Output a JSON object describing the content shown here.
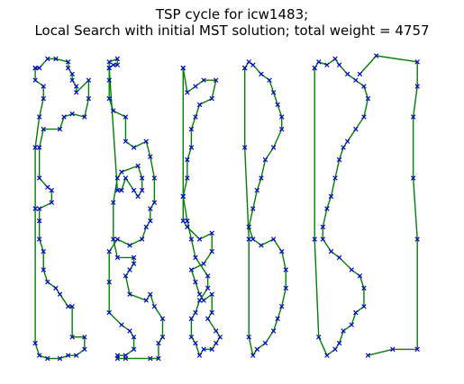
{
  "figure": {
    "title_line1": "TSP cycle for icw1483;",
    "title_line2": "Local Search with initial MST solution; total weight = 4757"
  },
  "chart_data": {
    "type": "scatter",
    "title": "TSP cycle for icw1483; Local Search with initial MST solution; total weight = 4757",
    "xlabel": "",
    "ylabel": "",
    "axes_visible": false,
    "grid": false,
    "legend": "none",
    "xlim": [
      0,
      100
    ],
    "ylim": [
      0,
      100
    ],
    "colors": {
      "edge": "#008000",
      "node": "#0000cc"
    },
    "series": [
      {
        "role": "cycle-edges",
        "x": [
          2,
          3,
          5,
          7,
          10,
          10,
          11,
          11,
          12,
          12,
          15,
          15,
          14,
          11,
          9,
          8,
          4,
          3,
          3,
          5,
          6,
          6,
          3,
          3,
          3,
          4,
          4,
          5,
          7,
          8,
          10,
          11,
          11,
          14,
          14,
          12,
          10,
          8,
          5,
          3,
          2,
          2,
          2,
          3,
          4,
          4,
          2,
          2
        ],
        "y": [
          96,
          96,
          99,
          99,
          98,
          96,
          94,
          92,
          90,
          88,
          92,
          86,
          80,
          81,
          80,
          76,
          76,
          70,
          60,
          57,
          56,
          52,
          50,
          46,
          40,
          36,
          30,
          26,
          24,
          22,
          18,
          18,
          8,
          8,
          4,
          2,
          2,
          1,
          1,
          2,
          6,
          50,
          70,
          80,
          86,
          90,
          92,
          96
        ]
      },
      {
        "role": "cycle-edges",
        "x": [
          20,
          21,
          22,
          22,
          20,
          20,
          20,
          21,
          24,
          24,
          26,
          29,
          30,
          31,
          31,
          30,
          30,
          29,
          28,
          25,
          22,
          20,
          20,
          20,
          23,
          25,
          26,
          26,
          24,
          22,
          22,
          24,
          30,
          32,
          32,
          33,
          33,
          31,
          30,
          29,
          25,
          24,
          25,
          26,
          26,
          22,
          21,
          21,
          22,
          23,
          27,
          28,
          28,
          27,
          26,
          24,
          23,
          22,
          20
        ],
        "y": [
          96,
          97,
          97,
          99,
          98,
          92,
          86,
          82,
          80,
          72,
          70,
          72,
          67,
          60,
          52,
          50,
          46,
          44,
          40,
          38,
          40,
          36,
          26,
          16,
          12,
          10,
          8,
          4,
          2,
          2,
          1,
          1,
          1,
          1,
          6,
          8,
          14,
          18,
          22,
          20,
          22,
          28,
          30,
          32,
          34,
          34,
          40,
          52,
          60,
          62,
          64,
          60,
          56,
          54,
          56,
          60,
          56,
          56,
          96
        ]
      },
      {
        "role": "cycle-edges",
        "x": [
          38,
          39,
          41,
          43,
          46,
          45,
          42,
          41,
          40,
          40,
          39,
          39,
          38,
          38,
          39,
          42,
          45,
          45,
          43,
          40,
          41,
          42,
          43,
          45,
          45,
          44,
          46,
          47,
          46,
          45,
          43,
          42,
          41,
          40,
          40,
          41,
          42,
          44,
          44,
          41,
          40,
          39,
          38,
          38
        ],
        "y": [
          96,
          88,
          90,
          92,
          92,
          86,
          84,
          80,
          76,
          70,
          66,
          60,
          54,
          46,
          44,
          40,
          42,
          36,
          32,
          30,
          26,
          22,
          20,
          22,
          16,
          14,
          10,
          8,
          6,
          4,
          4,
          2,
          6,
          8,
          14,
          16,
          20,
          24,
          28,
          34,
          40,
          46,
          54,
          96
        ]
      },
      {
        "role": "cycle-edges",
        "x": [
          53,
          54,
          55,
          57,
          59,
          60,
          61,
          62,
          62,
          60,
          58,
          57,
          56,
          55,
          54,
          55,
          57,
          60,
          62,
          63,
          63,
          62,
          61,
          60,
          58,
          56,
          55,
          54,
          54,
          53,
          53
        ],
        "y": [
          96,
          98,
          97,
          94,
          92,
          88,
          84,
          80,
          76,
          70,
          66,
          60,
          56,
          50,
          44,
          40,
          38,
          40,
          36,
          30,
          24,
          18,
          14,
          10,
          6,
          4,
          2,
          8,
          40,
          70,
          96
        ]
      },
      {
        "role": "cycle-edges",
        "x": [
          70,
          71,
          73,
          75,
          76,
          78,
          80,
          82,
          83,
          82,
          80,
          78,
          77,
          76,
          75,
          74,
          73,
          72,
          72,
          74,
          76,
          79,
          81,
          82,
          82,
          80,
          79,
          77,
          76,
          75,
          73,
          71,
          70,
          70
        ],
        "y": [
          96,
          98,
          97,
          99,
          97,
          94,
          92,
          90,
          86,
          80,
          76,
          72,
          70,
          66,
          60,
          54,
          50,
          44,
          40,
          36,
          34,
          30,
          28,
          24,
          18,
          16,
          12,
          10,
          6,
          4,
          2,
          8,
          40,
          96
        ]
      },
      {
        "role": "cycle-edges",
        "x": [
          81,
          85,
          95,
          95,
          94,
          94,
          95,
          95,
          89,
          83
        ],
        "y": [
          94,
          100,
          98,
          90,
          80,
          60,
          40,
          4,
          4,
          2
        ]
      }
    ]
  }
}
